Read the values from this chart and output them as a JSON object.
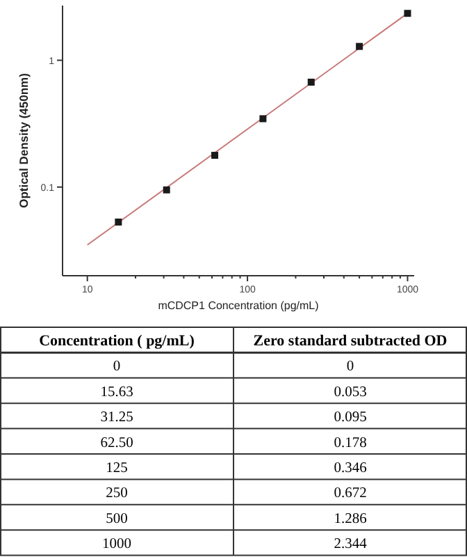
{
  "chart_data": [
    {
      "type": "scatter",
      "xlabel": "mCDCP1 Concentration (pg/mL)",
      "ylabel": "Optical Density (450nm)",
      "log": "xy",
      "xlim": [
        7,
        1100
      ],
      "ylim": [
        0.02,
        2.7
      ],
      "xticks": [
        10,
        {
          "value": 20,
          "label": null
        },
        {
          "value": 30,
          "label": null
        },
        {
          "value": 40,
          "label": null
        },
        {
          "value": 50,
          "label": null
        },
        {
          "value": 60,
          "label": null
        },
        {
          "value": 70,
          "label": null
        },
        {
          "value": 80,
          "label": null
        },
        {
          "value": 90,
          "label": null
        },
        100,
        {
          "value": 200,
          "label": null
        },
        {
          "value": 300,
          "label": null
        },
        {
          "value": 400,
          "label": null
        },
        {
          "value": 500,
          "label": null
        },
        {
          "value": 600,
          "label": null
        },
        {
          "value": 700,
          "label": null
        },
        {
          "value": 800,
          "label": null
        },
        {
          "value": 900,
          "label": null
        },
        1000
      ],
      "yticks": [
        0.1,
        1
      ],
      "grid": false,
      "marker": "square",
      "series": [
        {
          "type": "line",
          "color": "#c87878",
          "x": [
            10,
            1000
          ],
          "values": [
            0.035,
            2.344
          ],
          "marker": "none"
        },
        {
          "type": "scatter",
          "color": "#1a1a1a",
          "x": [
            15.63,
            31.25,
            62.5,
            125,
            250,
            500,
            1000
          ],
          "values": [
            0.053,
            0.095,
            0.178,
            0.346,
            0.672,
            1.286,
            2.344
          ]
        }
      ]
    },
    {
      "type": "other",
      "xlabel": "Concentration ( pg/mL)",
      "ylabel": "Zero standard subtracted OD",
      "data_labels": true,
      "categories": [
        "0",
        "15.63",
        "31.25",
        "62.50",
        "125",
        "250",
        "500",
        "1000"
      ],
      "values": [
        0,
        0.053,
        0.095,
        0.178,
        0.346,
        0.672,
        1.286,
        2.344
      ]
    }
  ]
}
